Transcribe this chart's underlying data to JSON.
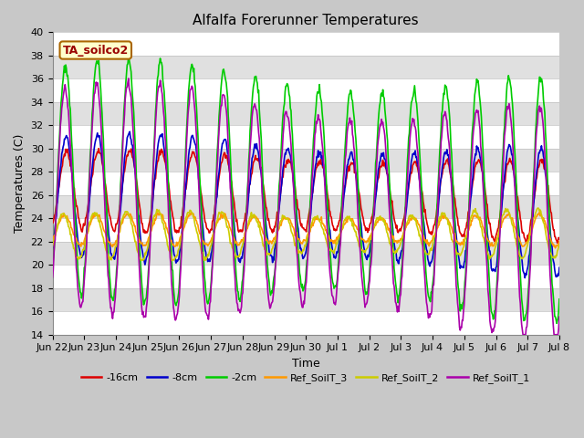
{
  "title": "Alfalfa Forerunner Temperatures",
  "xlabel": "Time",
  "ylabel": "Temperatures (C)",
  "ylim": [
    14,
    40
  ],
  "xlim": [
    0,
    16
  ],
  "annotation_text": "TA_soilco2",
  "fig_bg": "#c8c8c8",
  "ax_bg": "#dcdcdc",
  "series": [
    {
      "label": "-16cm",
      "color": "#dd0000",
      "lw": 1.2
    },
    {
      "label": "-8cm",
      "color": "#0000cc",
      "lw": 1.2
    },
    {
      "label": "-2cm",
      "color": "#00cc00",
      "lw": 1.2
    },
    {
      "label": "Ref_SoilT_3",
      "color": "#ff9900",
      "lw": 1.2
    },
    {
      "label": "Ref_SoilT_2",
      "color": "#cccc00",
      "lw": 1.2
    },
    {
      "label": "Ref_SoilT_1",
      "color": "#aa00aa",
      "lw": 1.2
    }
  ],
  "xtick_labels": [
    "Jun 22",
    "Jun 23",
    "Jun 24",
    "Jun 25",
    "Jun 26",
    "Jun 27",
    "Jun 28",
    "Jun 29",
    "Jun 30",
    "Jul 1",
    "Jul 2",
    "Jul 3",
    "Jul 4",
    "Jul 5",
    "Jul 6",
    "Jul 7",
    "Jul 8"
  ],
  "xtick_positions": [
    0,
    1,
    2,
    3,
    4,
    5,
    6,
    7,
    8,
    9,
    10,
    11,
    12,
    13,
    14,
    15,
    16
  ],
  "ytick_major": 2,
  "title_fontsize": 11,
  "label_fontsize": 9,
  "tick_fontsize": 8,
  "legend_fontsize": 8
}
